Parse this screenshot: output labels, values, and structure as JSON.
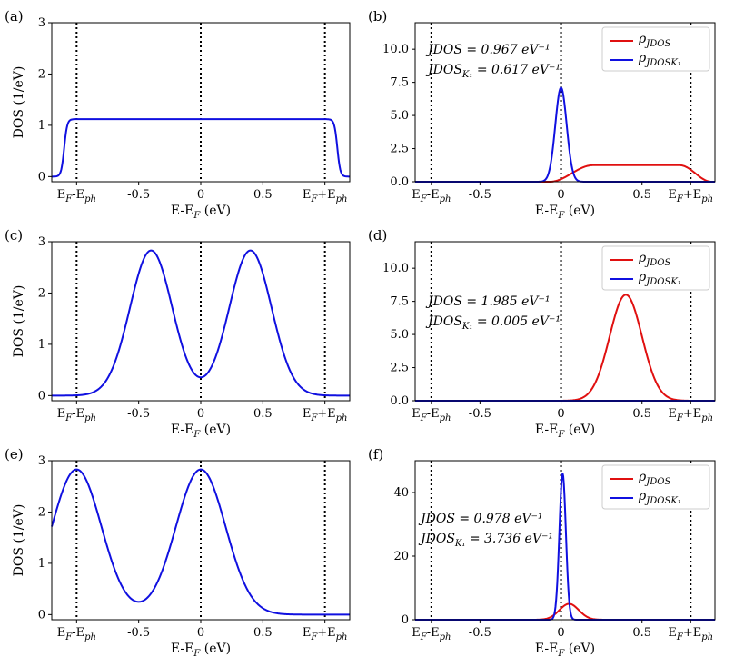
{
  "chart_data": [
    {
      "panel": "(a)",
      "type": "line",
      "ylabel": "DOS (1/eV)",
      "xlabel": "E-E_F (eV)",
      "xlim": [
        -1.2,
        1.2
      ],
      "ylim": [
        -0.1,
        3
      ],
      "yticks": [
        0,
        1,
        2,
        3
      ],
      "xticks": [
        {
          "value": -1.0,
          "label": "E_F-E_ph"
        },
        {
          "value": -0.5,
          "label": "-0.5"
        },
        {
          "value": 0,
          "label": "0"
        },
        {
          "value": 0.5,
          "label": "0.5"
        },
        {
          "value": 1.0,
          "label": "E_F+E_ph"
        }
      ],
      "vlines": [
        -1.0,
        0,
        1.0
      ],
      "series": [
        {
          "name": "DOS",
          "color": "#1010e0",
          "kind": "plateau",
          "height": 1.12,
          "center": 0,
          "halfwidth": 1.1,
          "edge": 0.012
        }
      ]
    },
    {
      "panel": "(b)",
      "type": "line",
      "xlabel": "E-E_F (eV)",
      "xlim": [
        -0.9,
        0.95
      ],
      "ylim": [
        0,
        12
      ],
      "yticks": [
        0.0,
        2.5,
        5.0,
        7.5,
        10.0
      ],
      "xticks": [
        {
          "value": -0.8,
          "label": "E_F-E_ph"
        },
        {
          "value": -0.5,
          "label": "-0.5"
        },
        {
          "value": 0,
          "label": "0"
        },
        {
          "value": 0.5,
          "label": "0.5"
        },
        {
          "value": 0.8,
          "label": "E_F+E_ph"
        }
      ],
      "vlines": [
        -0.8,
        0,
        0.8
      ],
      "annotations": [
        "JDOS = 0.967 eV⁻¹",
        "JDOS_K₁ = 0.617 eV⁻¹"
      ],
      "legend": {
        "position": "top-right",
        "entries": [
          "ρ_JDOS",
          "ρ_JDOS_K₁"
        ]
      },
      "series": [
        {
          "name": "ρ_JDOS",
          "color": "#e01010",
          "kind": "ramp-plateau",
          "height": 1.25,
          "start": -0.07,
          "rise_end": 0.2,
          "fall_start": 0.73,
          "end": 0.93
        },
        {
          "name": "ρ_JDOS_K₁",
          "color": "#1010e0",
          "kind": "gauss",
          "height": 7.1,
          "center": 0.0,
          "sigma": 0.035
        }
      ]
    },
    {
      "panel": "(c)",
      "type": "line",
      "ylabel": "DOS (1/eV)",
      "xlabel": "E-E_F (eV)",
      "xlim": [
        -1.2,
        1.2
      ],
      "ylim": [
        -0.1,
        3
      ],
      "yticks": [
        0,
        1,
        2,
        3
      ],
      "xticks": [
        {
          "value": -1.0,
          "label": "E_F-E_ph"
        },
        {
          "value": -0.5,
          "label": "-0.5"
        },
        {
          "value": 0,
          "label": "0"
        },
        {
          "value": 0.5,
          "label": "0.5"
        },
        {
          "value": 1.0,
          "label": "E_F+E_ph"
        }
      ],
      "vlines": [
        -1.0,
        0,
        1.0
      ],
      "series": [
        {
          "name": "DOS",
          "color": "#1010e0",
          "kind": "gauss-sum",
          "peaks": [
            {
              "center": -0.4,
              "height": 2.83,
              "sigma": 0.17
            },
            {
              "center": 0.4,
              "height": 2.83,
              "sigma": 0.17
            }
          ]
        }
      ]
    },
    {
      "panel": "(d)",
      "type": "line",
      "xlabel": "E-E_F (eV)",
      "xlim": [
        -0.9,
        0.95
      ],
      "ylim": [
        0,
        12
      ],
      "yticks": [
        0.0,
        2.5,
        5.0,
        7.5,
        10.0
      ],
      "xticks": [
        {
          "value": -0.8,
          "label": "E_F-E_ph"
        },
        {
          "value": -0.5,
          "label": "-0.5"
        },
        {
          "value": 0,
          "label": "0"
        },
        {
          "value": 0.5,
          "label": "0.5"
        },
        {
          "value": 0.8,
          "label": "E_F+E_ph"
        }
      ],
      "vlines": [
        -0.8,
        0,
        0.8
      ],
      "annotations": [
        "JDOS = 1.985 eV⁻¹",
        "JDOS_K₁ = 0.005 eV⁻¹"
      ],
      "legend": {
        "position": "top-right",
        "entries": [
          "ρ_JDOS",
          "ρ_JDOS_K₁"
        ]
      },
      "series": [
        {
          "name": "ρ_JDOS",
          "color": "#e01010",
          "kind": "gauss",
          "height": 8.0,
          "center": 0.4,
          "sigma": 0.1
        },
        {
          "name": "ρ_JDOS_K₁",
          "color": "#1010e0",
          "kind": "flat",
          "height": 0.0
        }
      ]
    },
    {
      "panel": "(e)",
      "type": "line",
      "ylabel": "DOS (1/eV)",
      "xlabel": "E-E_F (eV)",
      "xlim": [
        -1.2,
        1.2
      ],
      "ylim": [
        -0.1,
        3
      ],
      "yticks": [
        0,
        1,
        2,
        3
      ],
      "xticks": [
        {
          "value": -1.0,
          "label": "E_F-E_ph"
        },
        {
          "value": -0.5,
          "label": "-0.5"
        },
        {
          "value": 0,
          "label": "0"
        },
        {
          "value": 0.5,
          "label": "0.5"
        },
        {
          "value": 1.0,
          "label": "E_F+E_ph"
        }
      ],
      "vlines": [
        -1.0,
        0,
        1.0
      ],
      "series": [
        {
          "name": "DOS",
          "color": "#1010e0",
          "kind": "gauss-sum",
          "peaks": [
            {
              "center": -1.0,
              "height": 2.83,
              "sigma": 0.2
            },
            {
              "center": 0.0,
              "height": 2.83,
              "sigma": 0.2
            }
          ]
        }
      ]
    },
    {
      "panel": "(f)",
      "type": "line",
      "xlabel": "E-E_F (eV)",
      "xlim": [
        -0.9,
        0.95
      ],
      "ylim": [
        0,
        50
      ],
      "yticks": [
        0,
        20,
        40
      ],
      "xticks": [
        {
          "value": -0.8,
          "label": "E_F-E_ph"
        },
        {
          "value": -0.5,
          "label": "-0.5"
        },
        {
          "value": 0,
          "label": "0"
        },
        {
          "value": 0.5,
          "label": "0.5"
        },
        {
          "value": 0.8,
          "label": "E_F+E_ph"
        }
      ],
      "vlines": [
        -0.8,
        0,
        0.8
      ],
      "annotations": [
        "JDOS = 0.978 eV⁻¹",
        "JDOS_K₁ = 3.736 eV⁻¹"
      ],
      "legend": {
        "position": "top-right",
        "entries": [
          "ρ_JDOS",
          "ρ_JDOS_K₁"
        ]
      },
      "series": [
        {
          "name": "ρ_JDOS",
          "color": "#e01010",
          "kind": "gauss",
          "height": 5.0,
          "center": 0.05,
          "sigma": 0.06
        },
        {
          "name": "ρ_JDOS_K₁",
          "color": "#1010e0",
          "kind": "gauss",
          "height": 46.0,
          "center": 0.01,
          "sigma": 0.02
        }
      ]
    }
  ]
}
